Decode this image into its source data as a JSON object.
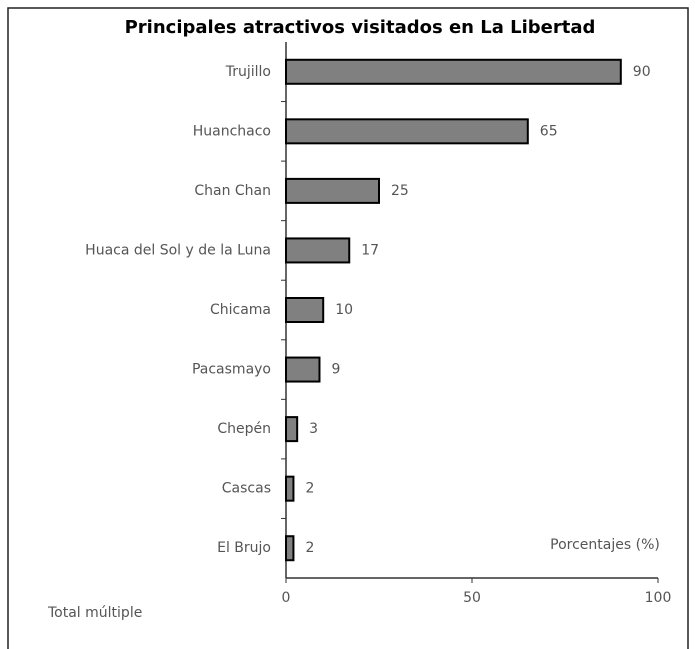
{
  "chart_data": {
    "type": "barh",
    "title": "Principales atractivos visitados en La Libertad",
    "categories": [
      "Trujillo",
      "Huanchaco",
      "Chan Chan",
      "Huaca del Sol y de la Luna",
      "Chicama",
      "Pacasmayo",
      "Chepén",
      "Cascas",
      "El Brujo"
    ],
    "values": [
      90,
      65,
      25,
      17,
      10,
      9,
      3,
      2,
      2
    ],
    "color": "#808080",
    "xlim": [
      0,
      100
    ],
    "xticks": [
      0,
      50,
      100
    ],
    "xlabel": "Porcentajes (%)",
    "note": "Total múltiple"
  }
}
